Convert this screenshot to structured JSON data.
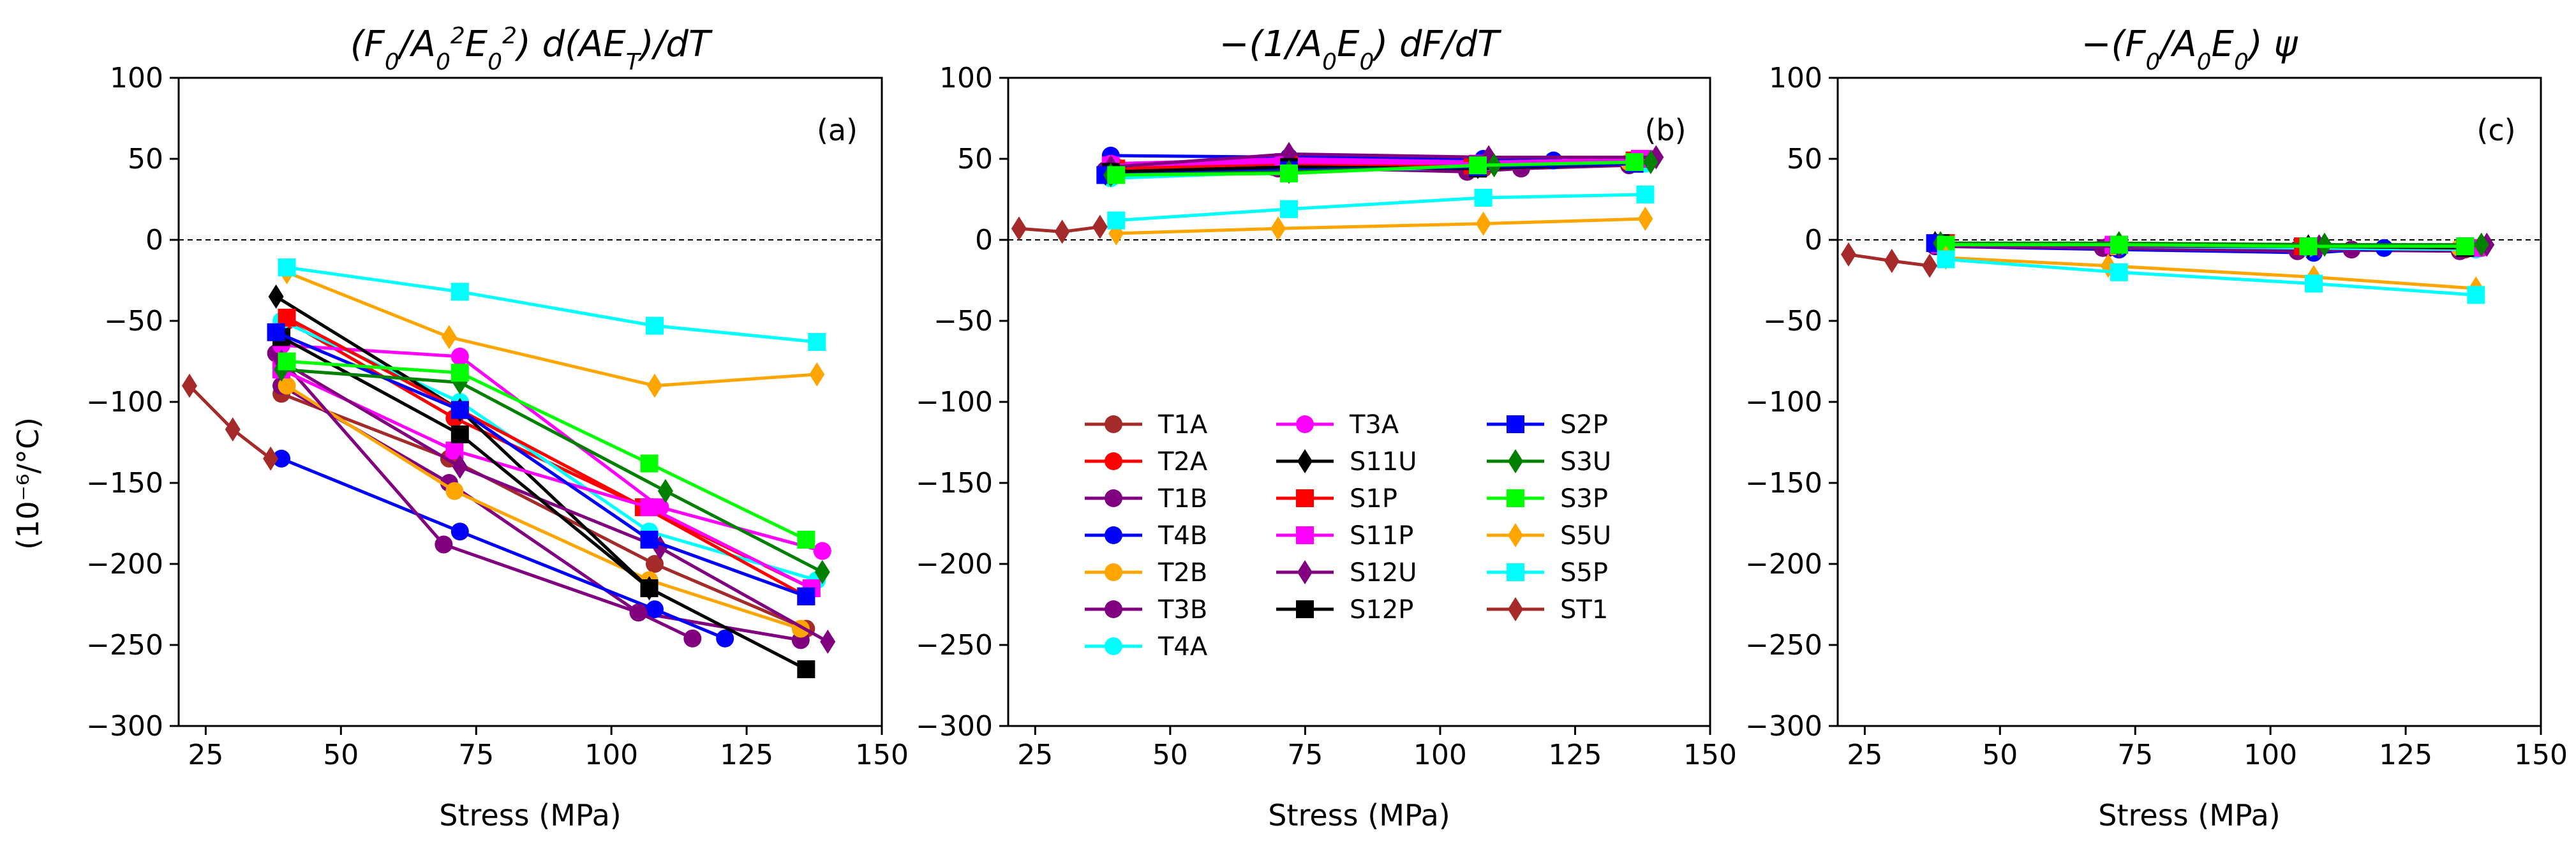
{
  "figure": {
    "ylabel": "(10⁻⁶/°C)",
    "xlabel": "Stress (MPa)"
  },
  "chart_data": [
    {
      "type": "line",
      "panel": "(a)",
      "title": "(F0/A0²E0²) d(AET)/dT",
      "xlabel": "Stress (MPa)",
      "ylabel": "(10⁻⁶/°C)",
      "xlim": [
        20,
        150
      ],
      "ylim": [
        -300,
        100
      ],
      "xticks": [
        25,
        50,
        75,
        100,
        125,
        150
      ],
      "yticks": [
        100,
        50,
        0,
        -50,
        -100,
        -150,
        -200,
        -250,
        -300
      ],
      "zero_line": true,
      "series": [
        {
          "name": "T1A",
          "x": [
            39,
            70,
            108,
            136
          ],
          "y": [
            -95,
            -135,
            -200,
            -240
          ]
        },
        {
          "name": "T2A",
          "x": [
            40,
            71,
            106,
            137
          ],
          "y": [
            -50,
            -110,
            -165,
            -215
          ]
        },
        {
          "name": "T1B",
          "x": [
            39,
            70,
            105,
            135
          ],
          "y": [
            -90,
            -150,
            -230,
            -247
          ]
        },
        {
          "name": "T4B",
          "x": [
            39,
            72,
            108,
            121
          ],
          "y": [
            -135,
            -180,
            -228,
            -246
          ]
        },
        {
          "name": "T2B",
          "x": [
            40,
            71,
            107,
            135
          ],
          "y": [
            -90,
            -155,
            -210,
            -240
          ]
        },
        {
          "name": "T3B",
          "x": [
            38,
            69,
            105,
            115
          ],
          "y": [
            -70,
            -188,
            -230,
            -246
          ]
        },
        {
          "name": "T4A",
          "x": [
            39,
            72,
            107,
            138
          ],
          "y": [
            -50,
            -100,
            -180,
            -210
          ]
        },
        {
          "name": "T3A",
          "x": [
            39,
            72,
            109,
            139
          ],
          "y": [
            -65,
            -72,
            -165,
            -192
          ]
        },
        {
          "name": "S11U",
          "x": [
            38,
            72,
            107
          ],
          "y": [
            -35,
            -105,
            -215
          ]
        },
        {
          "name": "S1P",
          "x": [
            40,
            72,
            106,
            136
          ],
          "y": [
            -48,
            -105,
            -165,
            -220
          ]
        },
        {
          "name": "S11P",
          "x": [
            39,
            71,
            107,
            137
          ],
          "y": [
            -80,
            -130,
            -165,
            -215
          ]
        },
        {
          "name": "S12U",
          "x": [
            39,
            72,
            109,
            140
          ],
          "y": [
            -75,
            -140,
            -190,
            -248
          ]
        },
        {
          "name": "S12P",
          "x": [
            39,
            72,
            107,
            136
          ],
          "y": [
            -60,
            -120,
            -215,
            -265
          ]
        },
        {
          "name": "S2P",
          "x": [
            38,
            72,
            107,
            136
          ],
          "y": [
            -57,
            -105,
            -185,
            -220
          ]
        },
        {
          "name": "S3U",
          "x": [
            39,
            72,
            110,
            139
          ],
          "y": [
            -80,
            -88,
            -155,
            -205
          ]
        },
        {
          "name": "S3P",
          "x": [
            40,
            72,
            107,
            136
          ],
          "y": [
            -75,
            -82,
            -138,
            -185
          ]
        },
        {
          "name": "S5U",
          "x": [
            40,
            70,
            108,
            138
          ],
          "y": [
            -20,
            -60,
            -90,
            -83
          ]
        },
        {
          "name": "S5P",
          "x": [
            40,
            72,
            108,
            138
          ],
          "y": [
            -17,
            -32,
            -53,
            -63
          ]
        },
        {
          "name": "ST1",
          "x": [
            22,
            30,
            37
          ],
          "y": [
            -90,
            -117,
            -135
          ]
        }
      ]
    },
    {
      "type": "line",
      "panel": "(b)",
      "title": "−(1/A0E0) dF/dT",
      "xlabel": "Stress (MPa)",
      "ylabel": "",
      "xlim": [
        20,
        150
      ],
      "ylim": [
        -300,
        100
      ],
      "xticks": [
        25,
        50,
        75,
        100,
        125,
        150
      ],
      "yticks": [
        100,
        50,
        0,
        -50,
        -100,
        -150,
        -200,
        -250,
        -300
      ],
      "zero_line": true,
      "series": [
        {
          "name": "T1A",
          "x": [
            39,
            70,
            108,
            136
          ],
          "y": [
            42,
            46,
            44,
            47
          ]
        },
        {
          "name": "T2A",
          "x": [
            40,
            71,
            106,
            137
          ],
          "y": [
            45,
            48,
            47,
            50
          ]
        },
        {
          "name": "T1B",
          "x": [
            39,
            70,
            105,
            135
          ],
          "y": [
            40,
            44,
            43,
            46
          ]
        },
        {
          "name": "T4B",
          "x": [
            39,
            72,
            108,
            121
          ],
          "y": [
            52,
            51,
            50,
            49
          ]
        },
        {
          "name": "T2B",
          "x": [
            40,
            71,
            107,
            135
          ],
          "y": [
            44,
            47,
            46,
            48
          ]
        },
        {
          "name": "T3B",
          "x": [
            38,
            69,
            105,
            115
          ],
          "y": [
            43,
            45,
            42,
            44
          ]
        },
        {
          "name": "T4A",
          "x": [
            39,
            72,
            107,
            138
          ],
          "y": [
            38,
            42,
            45,
            47
          ]
        },
        {
          "name": "T3A",
          "x": [
            39,
            72,
            109,
            139
          ],
          "y": [
            47,
            50,
            48,
            50
          ]
        },
        {
          "name": "S11U",
          "x": [
            38,
            72,
            107
          ],
          "y": [
            41,
            44,
            45
          ]
        },
        {
          "name": "S1P",
          "x": [
            40,
            72,
            106,
            136
          ],
          "y": [
            44,
            47,
            46,
            49
          ]
        },
        {
          "name": "S11P",
          "x": [
            39,
            71,
            107,
            137
          ],
          "y": [
            46,
            48,
            47,
            50
          ]
        },
        {
          "name": "S12U",
          "x": [
            39,
            72,
            109,
            140
          ],
          "y": [
            45,
            53,
            51,
            51
          ]
        },
        {
          "name": "S12P",
          "x": [
            39,
            72,
            107,
            136
          ],
          "y": [
            42,
            45,
            44,
            47
          ]
        },
        {
          "name": "S2P",
          "x": [
            38,
            72,
            107,
            136
          ],
          "y": [
            40,
            43,
            45,
            47
          ]
        },
        {
          "name": "S3U",
          "x": [
            39,
            72,
            110,
            139
          ],
          "y": [
            40,
            42,
            46,
            48
          ]
        },
        {
          "name": "S3P",
          "x": [
            40,
            72,
            107,
            136
          ],
          "y": [
            40,
            41,
            46,
            48
          ]
        },
        {
          "name": "S5U",
          "x": [
            40,
            70,
            108,
            138
          ],
          "y": [
            4,
            7,
            10,
            13
          ]
        },
        {
          "name": "S5P",
          "x": [
            40,
            72,
            108,
            138
          ],
          "y": [
            12,
            19,
            26,
            28
          ]
        },
        {
          "name": "ST1",
          "x": [
            22,
            30,
            37
          ],
          "y": [
            7,
            5,
            8
          ]
        }
      ]
    },
    {
      "type": "line",
      "panel": "(c)",
      "title": "−(F0/A0E0) ψ",
      "xlabel": "Stress (MPa)",
      "ylabel": "",
      "xlim": [
        20,
        150
      ],
      "ylim": [
        -300,
        100
      ],
      "xticks": [
        25,
        50,
        75,
        100,
        125,
        150
      ],
      "yticks": [
        100,
        50,
        0,
        -50,
        -100,
        -150,
        -200,
        -250,
        -300
      ],
      "zero_line": true,
      "series": [
        {
          "name": "T1A",
          "x": [
            39,
            70,
            108,
            136
          ],
          "y": [
            -3,
            -4,
            -5,
            -6
          ]
        },
        {
          "name": "T2A",
          "x": [
            40,
            71,
            106,
            137
          ],
          "y": [
            -2,
            -3,
            -4,
            -5
          ]
        },
        {
          "name": "T1B",
          "x": [
            39,
            70,
            105,
            135
          ],
          "y": [
            -3,
            -5,
            -6,
            -7
          ]
        },
        {
          "name": "T4B",
          "x": [
            39,
            72,
            108,
            121
          ],
          "y": [
            -4,
            -6,
            -8,
            -5
          ]
        },
        {
          "name": "T2B",
          "x": [
            40,
            71,
            107,
            135
          ],
          "y": [
            -3,
            -4,
            -4,
            -5
          ]
        },
        {
          "name": "T3B",
          "x": [
            38,
            69,
            105,
            115
          ],
          "y": [
            -4,
            -5,
            -7,
            -6
          ]
        },
        {
          "name": "T4A",
          "x": [
            39,
            72,
            107,
            138
          ],
          "y": [
            -3,
            -4,
            -5,
            -6
          ]
        },
        {
          "name": "T3A",
          "x": [
            39,
            72,
            109,
            139
          ],
          "y": [
            -2,
            -3,
            -4,
            -5
          ]
        },
        {
          "name": "S11U",
          "x": [
            38,
            72,
            107
          ],
          "y": [
            -2,
            -3,
            -4
          ]
        },
        {
          "name": "S1P",
          "x": [
            40,
            72,
            106,
            136
          ],
          "y": [
            -2,
            -3,
            -4,
            -4
          ]
        },
        {
          "name": "S11P",
          "x": [
            39,
            71,
            107,
            137
          ],
          "y": [
            -3,
            -3,
            -4,
            -5
          ]
        },
        {
          "name": "S12U",
          "x": [
            39,
            72,
            109,
            140
          ],
          "y": [
            -3,
            -4,
            -4,
            -3
          ]
        },
        {
          "name": "S12P",
          "x": [
            39,
            72,
            107,
            136
          ],
          "y": [
            -2,
            -3,
            -4,
            -5
          ]
        },
        {
          "name": "S2P",
          "x": [
            38,
            72,
            107,
            136
          ],
          "y": [
            -2,
            -3,
            -4,
            -4
          ]
        },
        {
          "name": "S3U",
          "x": [
            39,
            72,
            110,
            139
          ],
          "y": [
            -2,
            -2,
            -3,
            -3
          ]
        },
        {
          "name": "S3P",
          "x": [
            40,
            72,
            107,
            136
          ],
          "y": [
            -3,
            -3,
            -4,
            -4
          ]
        },
        {
          "name": "S5U",
          "x": [
            40,
            70,
            108,
            138
          ],
          "y": [
            -11,
            -16,
            -23,
            -30
          ]
        },
        {
          "name": "S5P",
          "x": [
            40,
            72,
            108,
            138
          ],
          "y": [
            -12,
            -20,
            -27,
            -34
          ]
        },
        {
          "name": "ST1",
          "x": [
            22,
            30,
            37
          ],
          "y": [
            -9,
            -13,
            -16
          ]
        }
      ]
    }
  ],
  "legend": {
    "placement": "lower-center of panel (b)",
    "columns": [
      [
        "T1A",
        "T2A",
        "T1B",
        "T4B",
        "T2B",
        "T3B",
        "T4A"
      ],
      [
        "T3A",
        "S11U",
        "S1P",
        "S11P",
        "S12U",
        "S12P"
      ],
      [
        "S2P",
        "S3U",
        "S3P",
        "S5U",
        "S5P",
        "ST1"
      ]
    ]
  },
  "styles": {
    "T1A": {
      "color": "#a52a2a",
      "marker": "circle"
    },
    "T2A": {
      "color": "#ff0000",
      "marker": "circle"
    },
    "T1B": {
      "color": "#800080",
      "marker": "circle"
    },
    "T4B": {
      "color": "#0000ff",
      "marker": "circle"
    },
    "T2B": {
      "color": "#ffa500",
      "marker": "circle"
    },
    "T3B": {
      "color": "#800080",
      "marker": "circle"
    },
    "T4A": {
      "color": "#00ffff",
      "marker": "circle"
    },
    "T3A": {
      "color": "#ff00ff",
      "marker": "circle"
    },
    "S11U": {
      "color": "#000000",
      "marker": "diamond"
    },
    "S1P": {
      "color": "#ff0000",
      "marker": "square"
    },
    "S11P": {
      "color": "#ff00ff",
      "marker": "square"
    },
    "S12U": {
      "color": "#800080",
      "marker": "diamond"
    },
    "S12P": {
      "color": "#000000",
      "marker": "square"
    },
    "S2P": {
      "color": "#0000ff",
      "marker": "square"
    },
    "S3U": {
      "color": "#008000",
      "marker": "diamond"
    },
    "S3P": {
      "color": "#00ff00",
      "marker": "square"
    },
    "S5U": {
      "color": "#ffa500",
      "marker": "diamond"
    },
    "S5P": {
      "color": "#00ffff",
      "marker": "square"
    },
    "ST1": {
      "color": "#a52a2a",
      "marker": "diamond"
    }
  }
}
